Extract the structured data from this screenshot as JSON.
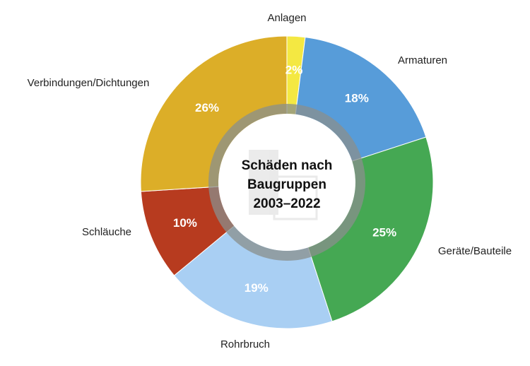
{
  "chart_data": {
    "type": "pie",
    "title": [
      "Schäden nach",
      "Baugruppen",
      "2003–2022"
    ],
    "slices": [
      {
        "label": "Anlagen",
        "value": 2,
        "value_label": "2%",
        "color": "#f4e842"
      },
      {
        "label": "Armaturen",
        "value": 18,
        "value_label": "18%",
        "color": "#579cd9"
      },
      {
        "label": "Geräte/Bauteile",
        "value": 25,
        "value_label": "25%",
        "color": "#45a853"
      },
      {
        "label": "Rohrbruch",
        "value": 19,
        "value_label": "19%",
        "color": "#a9cff3"
      },
      {
        "label": "Schläuche",
        "value": 10,
        "value_label": "10%",
        "color": "#b73b1f"
      },
      {
        "label": "Verbindungen/Dichtungen",
        "value": 26,
        "value_label": "26%",
        "color": "#dcae28"
      }
    ],
    "start_angle": "top",
    "direction": "clockwise",
    "donut": true
  }
}
